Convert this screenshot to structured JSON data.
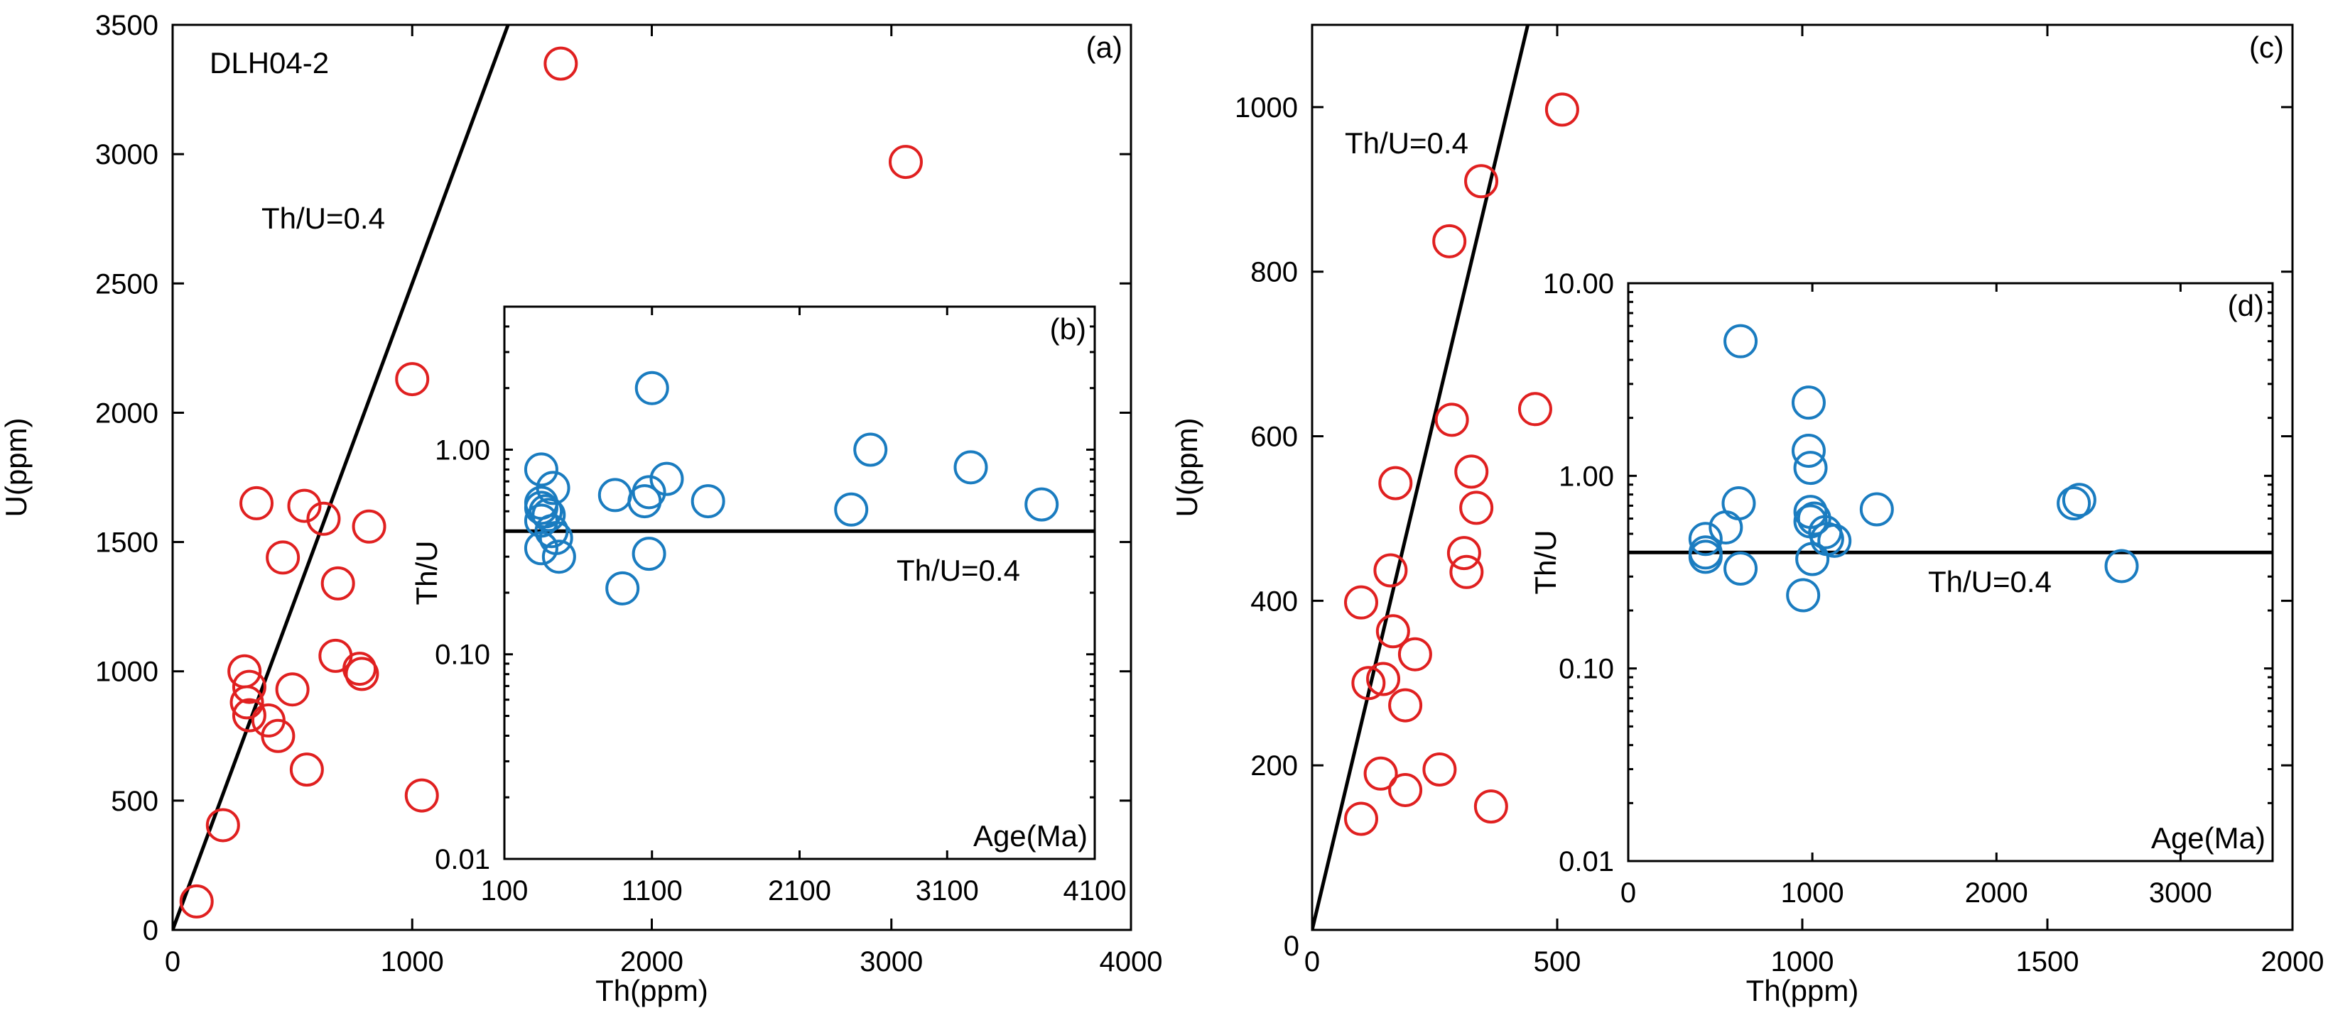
{
  "chart_data": [
    {
      "id": "a",
      "type": "scatter",
      "panel_label": "(a)",
      "sample_label": "DLH04-2",
      "xlabel": "Th(ppm)",
      "ylabel": "U(ppm)",
      "xlim": [
        0,
        4000
      ],
      "ylim": [
        0,
        3500
      ],
      "xticks": [
        0,
        1000,
        2000,
        3000,
        4000
      ],
      "yticks": [
        0,
        500,
        1000,
        1500,
        2000,
        2500,
        3000,
        3500
      ],
      "xtick_labels": [
        "0",
        "1000",
        "2000",
        "3000",
        "4000"
      ],
      "ytick_labels": [
        "0",
        "500",
        "1000",
        "1500",
        "2000",
        "2500",
        "3000",
        "3500"
      ],
      "reference_line": {
        "label": "Th/U=0.4",
        "ratio": 0.4
      },
      "marker_color": "#e02020",
      "points": [
        [
          100,
          110
        ],
        [
          210,
          405
        ],
        [
          300,
          1000
        ],
        [
          310,
          880
        ],
        [
          320,
          940
        ],
        [
          320,
          830
        ],
        [
          400,
          810
        ],
        [
          440,
          750
        ],
        [
          350,
          1650
        ],
        [
          460,
          1440
        ],
        [
          500,
          930
        ],
        [
          550,
          1640
        ],
        [
          560,
          620
        ],
        [
          630,
          1590
        ],
        [
          680,
          1060
        ],
        [
          690,
          1340
        ],
        [
          780,
          1010
        ],
        [
          790,
          990
        ],
        [
          820,
          1560
        ],
        [
          1000,
          2130
        ],
        [
          1040,
          520
        ],
        [
          1620,
          3350
        ],
        [
          3060,
          2970
        ]
      ]
    },
    {
      "id": "b",
      "type": "scatter",
      "panel_label": "(b)",
      "xlabel": "Age(Ma)",
      "ylabel": "Th/U",
      "yscale": "log",
      "xlim": [
        100,
        4100
      ],
      "ylim": [
        0.01,
        5
      ],
      "xticks": [
        100,
        1100,
        2100,
        3100,
        4100
      ],
      "yticks": [
        0.01,
        0.1,
        1
      ],
      "xtick_labels": [
        "100",
        "1100",
        "2100",
        "3100",
        "4100"
      ],
      "ytick_labels": [
        "0.01",
        "0.10",
        "1.00"
      ],
      "reference_line": {
        "label": "Th/U=0.4",
        "value": 0.4
      },
      "marker_color": "#1a7cc0",
      "points": [
        [
          350,
          0.8
        ],
        [
          350,
          0.55
        ],
        [
          350,
          0.52
        ],
        [
          350,
          0.45
        ],
        [
          350,
          0.33
        ],
        [
          380,
          0.5
        ],
        [
          400,
          0.48
        ],
        [
          420,
          0.4
        ],
        [
          430,
          0.65
        ],
        [
          450,
          0.37
        ],
        [
          470,
          0.3
        ],
        [
          850,
          0.6
        ],
        [
          900,
          0.21
        ],
        [
          1050,
          0.56
        ],
        [
          1080,
          0.62
        ],
        [
          1080,
          0.31
        ],
        [
          1100,
          2.0
        ],
        [
          1200,
          0.72
        ],
        [
          1480,
          0.56
        ],
        [
          2450,
          0.51
        ],
        [
          2580,
          1.0
        ],
        [
          3260,
          0.82
        ],
        [
          3740,
          0.54
        ]
      ]
    },
    {
      "id": "c",
      "type": "scatter",
      "panel_label": "(c)",
      "xlabel": "Th(ppm)",
      "ylabel": "U(ppm)",
      "xlim": [
        0,
        2000
      ],
      "ylim": [
        0,
        1100
      ],
      "xticks": [
        0,
        500,
        1000,
        1500,
        2000
      ],
      "yticks": [
        200,
        400,
        600,
        800,
        1000
      ],
      "xtick_labels": [
        "0",
        "500",
        "1000",
        "1500",
        "2000"
      ],
      "ytick_labels": [
        "200",
        "400",
        "600",
        "800",
        "1000"
      ],
      "origin_label": "0",
      "reference_line": {
        "label": "Th/U=0.4",
        "ratio": 0.4
      },
      "marker_color": "#e02020",
      "points": [
        [
          100,
          135
        ],
        [
          100,
          398
        ],
        [
          115,
          300
        ],
        [
          140,
          190
        ],
        [
          145,
          305
        ],
        [
          160,
          437
        ],
        [
          165,
          363
        ],
        [
          170,
          543
        ],
        [
          190,
          170
        ],
        [
          190,
          273
        ],
        [
          210,
          335
        ],
        [
          260,
          195
        ],
        [
          280,
          837
        ],
        [
          285,
          620
        ],
        [
          310,
          458
        ],
        [
          315,
          435
        ],
        [
          325,
          557
        ],
        [
          335,
          513
        ],
        [
          345,
          910
        ],
        [
          365,
          150
        ],
        [
          455,
          633
        ],
        [
          510,
          997
        ]
      ]
    },
    {
      "id": "d",
      "type": "scatter",
      "panel_label": "(d)",
      "xlabel": "Age(Ma)",
      "ylabel": "Th/U",
      "yscale": "log",
      "xlim": [
        0,
        3500
      ],
      "ylim": [
        0.01,
        10
      ],
      "xticks": [
        0,
        1000,
        2000,
        3000
      ],
      "yticks": [
        0.01,
        0.1,
        1,
        10
      ],
      "xtick_labels": [
        "0",
        "1000",
        "2000",
        "3000"
      ],
      "ytick_labels": [
        "0.01",
        "0.10",
        "1.00",
        "10.00"
      ],
      "reference_line": {
        "label": "Th/U=0.4",
        "value": 0.4
      },
      "marker_color": "#1a7cc0",
      "points": [
        [
          420,
          0.47
        ],
        [
          420,
          0.4
        ],
        [
          420,
          0.38
        ],
        [
          530,
          0.54
        ],
        [
          600,
          0.72
        ],
        [
          610,
          0.33
        ],
        [
          610,
          5.0
        ],
        [
          950,
          0.24
        ],
        [
          980,
          2.4
        ],
        [
          980,
          1.35
        ],
        [
          990,
          1.1
        ],
        [
          990,
          0.65
        ],
        [
          990,
          0.58
        ],
        [
          1000,
          0.37
        ],
        [
          1010,
          0.6
        ],
        [
          1070,
          0.51
        ],
        [
          1080,
          0.47
        ],
        [
          1120,
          0.46
        ],
        [
          1350,
          0.67
        ],
        [
          2420,
          0.72
        ],
        [
          2450,
          0.75
        ],
        [
          2680,
          0.34
        ]
      ]
    }
  ]
}
